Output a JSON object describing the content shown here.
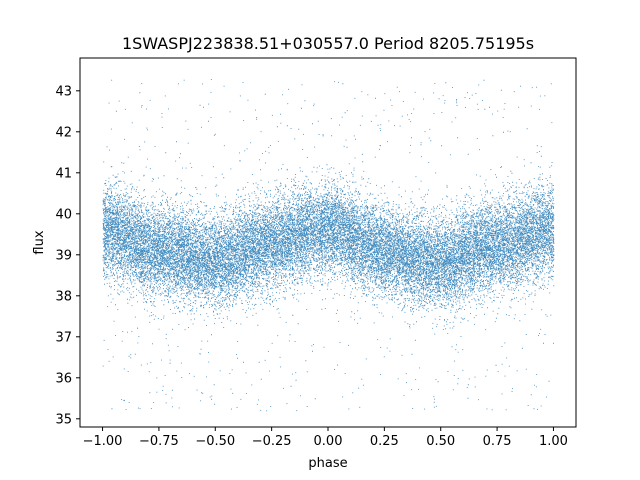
{
  "chart_data": {
    "type": "scatter",
    "title": "1SWASPJ223838.51+030557.0 Period 8205.75195s",
    "xlabel": "phase",
    "ylabel": "flux",
    "xlim": [
      -1.1,
      1.1
    ],
    "ylim": [
      34.8,
      43.8
    ],
    "xticks": [
      -1.0,
      -0.75,
      -0.5,
      -0.25,
      0.0,
      0.25,
      0.5,
      0.75,
      1.0
    ],
    "xtick_labels": [
      "−1.00",
      "−0.75",
      "−0.50",
      "−0.25",
      "0.00",
      "0.25",
      "0.50",
      "0.75",
      "1.00"
    ],
    "yticks": [
      35,
      36,
      37,
      38,
      39,
      40,
      41,
      42,
      43
    ],
    "ytick_labels": [
      "35",
      "36",
      "37",
      "38",
      "39",
      "40",
      "41",
      "42",
      "43"
    ],
    "grid": false,
    "legend": "none",
    "point_color": "#1f77b4",
    "series": [
      {
        "approx_point_count": 28000,
        "trend": {
          "x": [
            -1.0,
            -0.75,
            -0.5,
            -0.25,
            0.0,
            0.25,
            0.5,
            0.75,
            1.0
          ],
          "y": [
            39.6,
            39.1,
            38.85,
            39.3,
            39.65,
            39.1,
            38.8,
            39.25,
            39.6
          ]
        },
        "scatter_std": 0.55,
        "outlier_range": [
          35.2,
          43.3
        ]
      }
    ]
  }
}
